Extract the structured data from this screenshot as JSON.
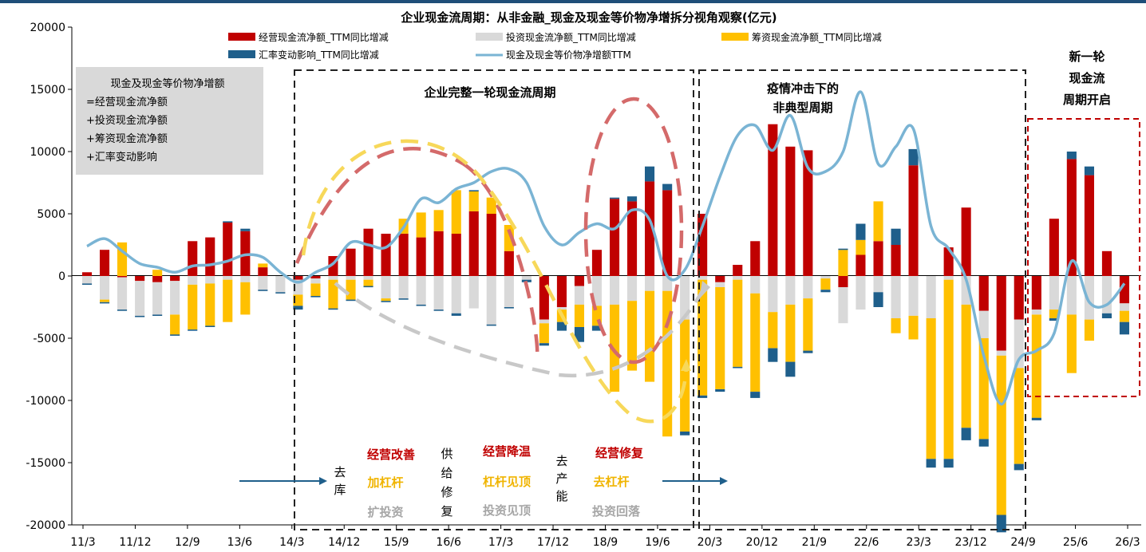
{
  "chart_data": {
    "type": "bar",
    "title": "企业现金流周期：从非金融_现金及现金等价物净增拆分视角观察(亿元)",
    "ylim": [
      -20000,
      20000
    ],
    "yticks": [
      -20000,
      -15000,
      -10000,
      -5000,
      0,
      5000,
      10000,
      15000,
      20000
    ],
    "xtick_labels": [
      "11/3",
      "11/12",
      "12/9",
      "13/6",
      "14/3",
      "14/12",
      "15/9",
      "16/6",
      "17/3",
      "17/12",
      "18/9",
      "19/6",
      "20/3",
      "20/12",
      "21/9",
      "22/6",
      "23/3",
      "23/12",
      "24/9",
      "25/6",
      "26/3"
    ],
    "grid": false,
    "legend_position": "top",
    "legend": [
      {
        "name": "经营现金流净额_TTM同比增减",
        "color": "#c00000",
        "kind": "bar"
      },
      {
        "name": "投资现金流净额_TTM同比增减",
        "color": "#d9d9d9",
        "kind": "bar"
      },
      {
        "name": "筹资现金流净额_TTM同比增减",
        "color": "#ffc000",
        "kind": "bar"
      },
      {
        "name": "汇率变动影响_TTM同比增减",
        "color": "#1f5f8b",
        "kind": "bar"
      },
      {
        "name": "现金及现金等价物净增额TTM",
        "color": "#7ab4d4",
        "kind": "line"
      }
    ],
    "series": [
      {
        "name": "经营现金流净额_TTM同比增减",
        "values": [
          300,
          2100,
          -100,
          -400,
          -500,
          -400,
          2800,
          3100,
          4300,
          3600,
          700,
          0,
          -300,
          -200,
          1600,
          2200,
          3800,
          3400,
          3400,
          3100,
          3600,
          3400,
          5200,
          5000,
          2000,
          0,
          -3500,
          -2500,
          -800,
          2100,
          6200,
          6000,
          7600,
          6900,
          0,
          5000,
          -500,
          900,
          2800,
          12200,
          10400,
          10100,
          0,
          -900,
          1700,
          2800,
          2500,
          8900,
          0,
          2300,
          5500,
          -2800,
          -6000,
          -3500,
          -2700,
          4600,
          9400,
          8100,
          2000,
          -2200
        ]
      },
      {
        "name": "投资现金流净额_TTM同比增减",
        "values": [
          -600,
          -1900,
          -2600,
          -2800,
          -2600,
          -2700,
          -700,
          -600,
          -300,
          -500,
          -1100,
          -1300,
          -1200,
          -400,
          -300,
          -300,
          -300,
          -1800,
          -1800,
          -2300,
          -2700,
          -3000,
          -2600,
          -3900,
          -2500,
          -300,
          -300,
          -200,
          -1500,
          -2400,
          -2300,
          -2000,
          -1200,
          -1200,
          -3500,
          -300,
          -400,
          -300,
          -1400,
          -2900,
          -2300,
          -1800,
          -200,
          -2900,
          -2700,
          -1300,
          -3400,
          -3200,
          -3400,
          -300,
          -2300,
          -2200,
          -400,
          -3900,
          -400,
          -2700,
          -3100,
          -3500,
          -3000,
          -600
        ]
      },
      {
        "name": "筹资现金流净额_TTM同比增减",
        "values": [
          0,
          -200,
          2700,
          0,
          500,
          -1600,
          -3600,
          -3400,
          -3400,
          -2600,
          300,
          0,
          -900,
          -1000,
          -2300,
          -1600,
          -500,
          -200,
          1200,
          2000,
          1700,
          3500,
          1600,
          1300,
          2100,
          0,
          -1600,
          -1000,
          -1800,
          -1600,
          -7000,
          -5600,
          -7300,
          -11700,
          -9000,
          -9300,
          -8200,
          -7000,
          -7900,
          -2900,
          -4600,
          -4200,
          -900,
          2100,
          1200,
          3200,
          -1200,
          -1900,
          -11300,
          -14400,
          -9900,
          -8100,
          -12800,
          -7700,
          -8300,
          -700,
          -4700,
          -1700,
          0,
          -900
        ]
      },
      {
        "name": "汇率变动影响_TTM同比增减",
        "values": [
          -100,
          -100,
          -100,
          -100,
          -100,
          -100,
          -100,
          -100,
          100,
          200,
          -100,
          -100,
          -300,
          -100,
          -100,
          -100,
          -100,
          -100,
          -100,
          -100,
          -100,
          -200,
          100,
          -100,
          -100,
          -200,
          -200,
          -700,
          -1200,
          -400,
          100,
          400,
          1200,
          500,
          -300,
          -200,
          -200,
          -100,
          -500,
          -1100,
          -1200,
          -200,
          -200,
          100,
          1300,
          -1200,
          1300,
          1300,
          -700,
          -700,
          -1000,
          -600,
          -1400,
          -500,
          -200,
          -200,
          600,
          700,
          -400,
          -1000
        ]
      },
      {
        "name": "现金及现金等价物净增额TTM",
        "values": [
          2400,
          3000,
          2000,
          1000,
          700,
          300,
          800,
          900,
          1200,
          1700,
          1500,
          300,
          -500,
          300,
          1000,
          2700,
          2500,
          2300,
          3900,
          6200,
          5900,
          7000,
          7500,
          8400,
          8600,
          7500,
          4000,
          2500,
          3500,
          4200,
          3800,
          5300,
          4500,
          0,
          500,
          4000,
          8000,
          11300,
          12100,
          10100,
          12900,
          8700,
          8400,
          10000,
          14800,
          9000,
          10400,
          11800,
          4000,
          2200,
          -300,
          -6400,
          -10300,
          -6700,
          -6000,
          -4600,
          1200,
          -2100,
          -2300,
          -600
        ]
      }
    ]
  },
  "note_box": {
    "lines": [
      "现金及现金等价物净增额",
      "=经营现金流净额",
      "+投资现金流净额",
      "+筹资现金流净额",
      "+汇率变动影响"
    ]
  },
  "annotations": {
    "cycle1": "企业完整一轮现金流周期",
    "cycle2_line1": "疫情冲击下的",
    "cycle2_line2": "非典型周期",
    "cycle3_line1": "新一轮",
    "cycle3_line2": "现金流",
    "cycle3_line3": "周期开启",
    "phase_destock": "去库",
    "phase_supply": "供给修复",
    "phase_capacity": "去产能",
    "op_improve": "经营改善",
    "leverage_up": "加杠杆",
    "invest_up": "扩投资",
    "op_cool": "经营降温",
    "leverage_peak": "杠杆见顶",
    "invest_peak": "投资见顶",
    "op_repair": "经营修复",
    "deleverage": "去杠杆",
    "invest_fall": "投资回落"
  },
  "colors": {
    "operating": "#c00000",
    "investing": "#d9d9d9",
    "financing": "#ffc000",
    "fx": "#1f5f8b",
    "line": "#7ab4d4",
    "note_box": "#d9d9d9",
    "arrow": "#1f5f8b"
  }
}
